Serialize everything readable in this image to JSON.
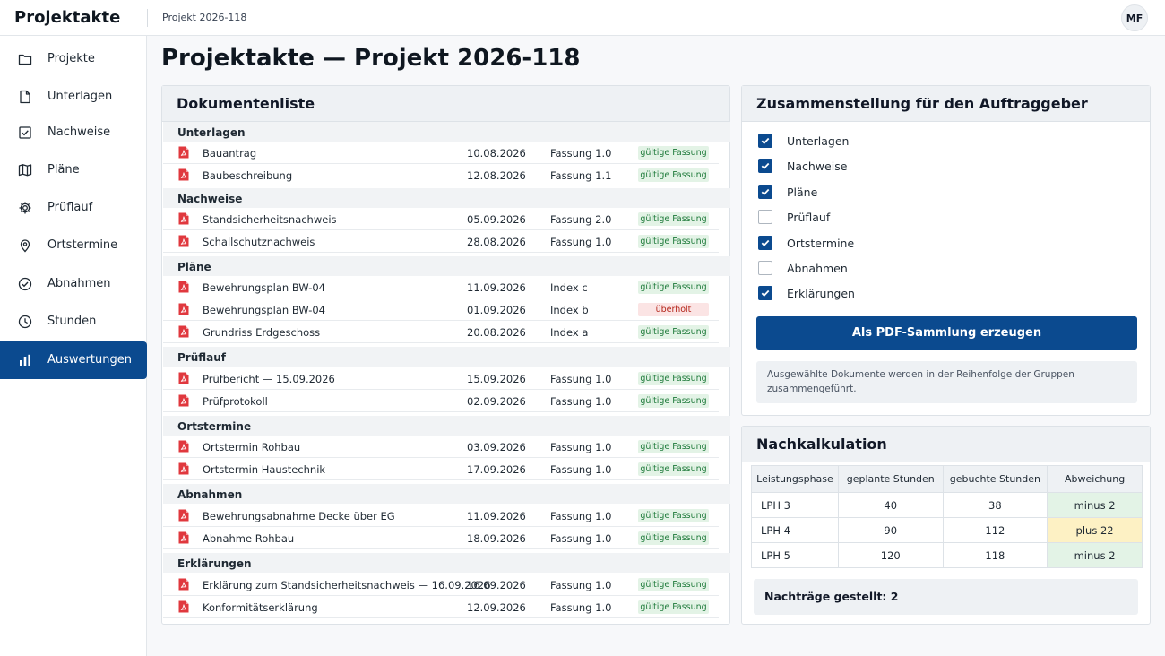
{
  "app": {
    "title": "Projektakte",
    "breadcrumb": "Projekt 2026-118",
    "user_initials": "MF"
  },
  "sidebar": {
    "items": [
      {
        "label": "Projekte",
        "icon": "folder-icon"
      },
      {
        "label": "Unterlagen",
        "icon": "document-icon"
      },
      {
        "label": "Nachweise",
        "icon": "checkbox-icon"
      },
      {
        "label": "Pläne",
        "icon": "map-icon"
      },
      {
        "label": "Prüflauf",
        "icon": "gear-icon"
      },
      {
        "label": "Ortstermine",
        "icon": "location-pin-icon"
      },
      {
        "label": "Abnahmen",
        "icon": "check-circle-icon"
      },
      {
        "label": "Stunden",
        "icon": "clock-icon"
      },
      {
        "label": "Auswertungen",
        "icon": "bar-chart-icon",
        "active": true
      }
    ]
  },
  "page": {
    "title": "Projektakte — Projekt 2026-118"
  },
  "doclist": {
    "title": "Dokumentenliste",
    "groups": [
      {
        "name": "Unterlagen",
        "docs": [
          {
            "name": "Bauantrag",
            "date": "10.08.2026",
            "version": "Fassung 1.0",
            "status": "gültige Fassung",
            "state": "ok"
          },
          {
            "name": "Baubeschreibung",
            "date": "12.08.2026",
            "version": "Fassung 1.1",
            "status": "gültige Fassung",
            "state": "ok"
          }
        ]
      },
      {
        "name": "Nachweise",
        "docs": [
          {
            "name": "Standsicherheitsnachweis",
            "date": "05.09.2026",
            "version": "Fassung 2.0",
            "status": "gültige Fassung",
            "state": "ok"
          },
          {
            "name": "Schallschutznachweis",
            "date": "28.08.2026",
            "version": "Fassung 1.0",
            "status": "gültige Fassung",
            "state": "ok"
          }
        ]
      },
      {
        "name": "Pläne",
        "docs": [
          {
            "name": "Bewehrungsplan BW-04",
            "date": "11.09.2026",
            "version": "Index c",
            "status": "gültige Fassung",
            "state": "ok"
          },
          {
            "name": "Bewehrungsplan BW-04",
            "date": "01.09.2026",
            "version": "Index b",
            "status": "überholt",
            "state": "old"
          },
          {
            "name": "Grundriss Erdgeschoss",
            "date": "20.08.2026",
            "version": "Index a",
            "status": "gültige Fassung",
            "state": "ok"
          }
        ]
      },
      {
        "name": "Prüflauf",
        "docs": [
          {
            "name": "Prüfbericht — 15.09.2026",
            "date": "15.09.2026",
            "version": "Fassung 1.0",
            "status": "gültige Fassung",
            "state": "ok"
          },
          {
            "name": "Prüfprotokoll",
            "date": "02.09.2026",
            "version": "Fassung 1.0",
            "status": "gültige Fassung",
            "state": "ok"
          }
        ]
      },
      {
        "name": "Ortstermine",
        "docs": [
          {
            "name": "Ortstermin Rohbau",
            "date": "03.09.2026",
            "version": "Fassung 1.0",
            "status": "gültige Fassung",
            "state": "ok"
          },
          {
            "name": "Ortstermin Haustechnik",
            "date": "17.09.2026",
            "version": "Fassung 1.0",
            "status": "gültige Fassung",
            "state": "ok"
          }
        ]
      },
      {
        "name": "Abnahmen",
        "docs": [
          {
            "name": "Bewehrungsabnahme Decke über EG",
            "date": "11.09.2026",
            "version": "Fassung 1.0",
            "status": "gültige Fassung",
            "state": "ok"
          },
          {
            "name": "Abnahme Rohbau",
            "date": "18.09.2026",
            "version": "Fassung 1.0",
            "status": "gültige Fassung",
            "state": "ok"
          }
        ]
      },
      {
        "name": "Erklärungen",
        "docs": [
          {
            "name": "Erklärung zum Standsicherheitsnachweis — 16.09.2026",
            "date": "16.09.2026",
            "version": "Fassung 1.0",
            "status": "gültige Fassung",
            "state": "ok"
          },
          {
            "name": "Konformitätserklärung",
            "date": "12.09.2026",
            "version": "Fassung 1.0",
            "status": "gültige Fassung",
            "state": "ok"
          }
        ]
      }
    ]
  },
  "compile": {
    "title": "Zusammenstellung für den Auftraggeber",
    "options": [
      {
        "label": "Unterlagen",
        "checked": true
      },
      {
        "label": "Nachweise",
        "checked": true
      },
      {
        "label": "Pläne",
        "checked": true
      },
      {
        "label": "Prüflauf",
        "checked": false
      },
      {
        "label": "Ortstermine",
        "checked": true
      },
      {
        "label": "Abnahmen",
        "checked": false
      },
      {
        "label": "Erklärungen",
        "checked": true
      }
    ],
    "button_label": "Als PDF-Sammlung erzeugen",
    "info": "Ausgewählte Dokumente werden in der Reihenfolge der Gruppen zusammengeführt."
  },
  "calc": {
    "title": "Nachkalkulation",
    "columns": [
      "Leistungsphase",
      "geplante Stunden",
      "gebuchte Stunden",
      "Abweichung"
    ],
    "rows": [
      {
        "phase": "LPH 3",
        "planned": "40",
        "booked": "38",
        "deviation": "minus 2",
        "tone": "green"
      },
      {
        "phase": "LPH 4",
        "planned": "90",
        "booked": "112",
        "deviation": "plus 22",
        "tone": "yellow"
      },
      {
        "phase": "LPH 5",
        "planned": "120",
        "booked": "118",
        "deviation": "minus 2",
        "tone": "green"
      }
    ],
    "summary": "Nachträge gestellt: 2"
  },
  "colors": {
    "primary": "#0b4a8f",
    "ok_bg": "#e3f3e6",
    "old_bg": "#fbe4e4",
    "warn_bg": "#fdf1c4"
  }
}
